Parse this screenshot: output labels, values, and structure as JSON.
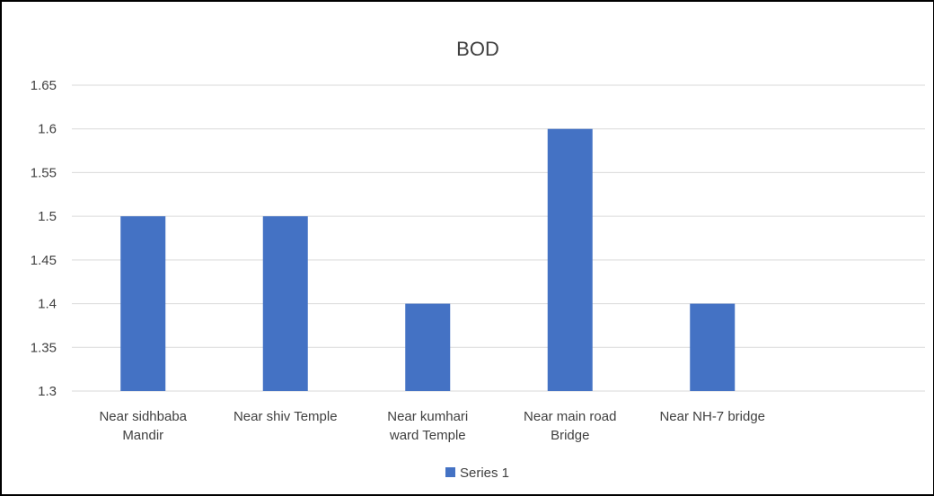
{
  "chart_data": {
    "type": "bar",
    "title": "BOD",
    "categories": [
      [
        "Near sidhbaba",
        "Mandir"
      ],
      [
        "Near shiv Temple"
      ],
      [
        "Near kumhari",
        "ward Temple"
      ],
      [
        "Near main road",
        "Bridge"
      ],
      [
        "Near NH-7 bridge"
      ]
    ],
    "series": [
      {
        "name": "Series 1",
        "values": [
          1.5,
          1.5,
          1.4,
          1.6,
          1.4
        ],
        "color": "#4472C4"
      }
    ],
    "ylim": [
      1.3,
      1.65
    ],
    "yticks": [
      "1.3",
      "1.35",
      "1.4",
      "1.45",
      "1.5",
      "1.55",
      "1.6",
      "1.65"
    ],
    "xlabel": "",
    "ylabel": "",
    "grid": true,
    "legend": "bottom",
    "gridline_color": "#D9D9D9"
  }
}
